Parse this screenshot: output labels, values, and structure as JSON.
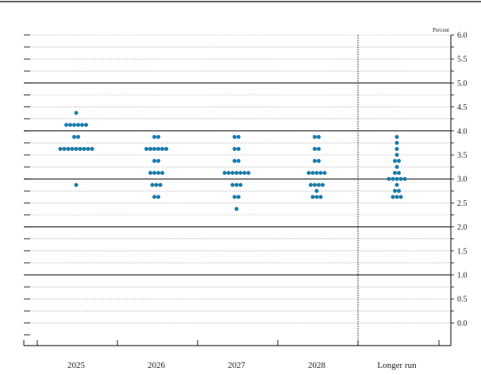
{
  "chart_data": {
    "type": "scatter",
    "title": "",
    "unit_label": "Percent",
    "ylim": [
      -0.25,
      6.0
    ],
    "y_ticks": [
      "6.0",
      "5.5",
      "5.0",
      "4.5",
      "4.0",
      "3.5",
      "3.0",
      "2.5",
      "2.0",
      "1.5",
      "1.0",
      "0.5",
      "0.0"
    ],
    "categories": [
      "2025",
      "2026",
      "2027",
      "2028",
      "Longer run"
    ],
    "dot_color": "#1a7aa8",
    "columns": [
      {
        "category": "2025",
        "rate_counts": [
          {
            "rate": 4.375,
            "count": 1
          },
          {
            "rate": 4.125,
            "count": 6
          },
          {
            "rate": 3.875,
            "count": 2
          },
          {
            "rate": 3.625,
            "count": 9
          },
          {
            "rate": 2.875,
            "count": 1
          }
        ]
      },
      {
        "category": "2026",
        "rate_counts": [
          {
            "rate": 3.875,
            "count": 2
          },
          {
            "rate": 3.625,
            "count": 6
          },
          {
            "rate": 3.375,
            "count": 2
          },
          {
            "rate": 3.125,
            "count": 4
          },
          {
            "rate": 2.875,
            "count": 3
          },
          {
            "rate": 2.625,
            "count": 2
          }
        ]
      },
      {
        "category": "2027",
        "rate_counts": [
          {
            "rate": 3.875,
            "count": 2
          },
          {
            "rate": 3.625,
            "count": 2
          },
          {
            "rate": 3.375,
            "count": 2
          },
          {
            "rate": 3.125,
            "count": 7
          },
          {
            "rate": 2.875,
            "count": 3
          },
          {
            "rate": 2.625,
            "count": 2
          },
          {
            "rate": 2.375,
            "count": 1
          }
        ]
      },
      {
        "category": "2028",
        "rate_counts": [
          {
            "rate": 3.875,
            "count": 2
          },
          {
            "rate": 3.625,
            "count": 2
          },
          {
            "rate": 3.375,
            "count": 2
          },
          {
            "rate": 3.125,
            "count": 5
          },
          {
            "rate": 2.875,
            "count": 4
          },
          {
            "rate": 2.75,
            "count": 1
          },
          {
            "rate": 2.625,
            "count": 3
          }
        ]
      },
      {
        "category": "Longer run",
        "rate_counts": [
          {
            "rate": 3.875,
            "count": 1
          },
          {
            "rate": 3.75,
            "count": 1
          },
          {
            "rate": 3.625,
            "count": 1
          },
          {
            "rate": 3.5,
            "count": 1
          },
          {
            "rate": 3.375,
            "count": 2
          },
          {
            "rate": 3.25,
            "count": 1
          },
          {
            "rate": 3.125,
            "count": 2
          },
          {
            "rate": 3.0,
            "count": 5
          },
          {
            "rate": 2.875,
            "count": 1
          },
          {
            "rate": 2.75,
            "count": 2
          },
          {
            "rate": 2.625,
            "count": 3
          }
        ]
      }
    ],
    "grid": true,
    "legend": "none"
  }
}
